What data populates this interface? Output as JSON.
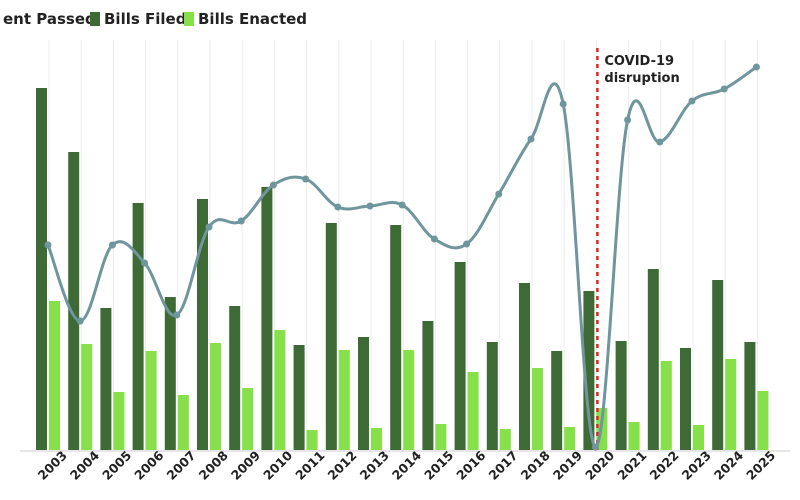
{
  "chart_data": {
    "type": "bar",
    "categories": [
      "2003",
      "2004",
      "2005",
      "2006",
      "2007",
      "2008",
      "2009",
      "2010",
      "2011",
      "2012",
      "2013",
      "2014",
      "2015",
      "2016",
      "2017",
      "2018",
      "2019",
      "2020",
      "2021",
      "2022",
      "2023",
      "2024",
      "2025"
    ],
    "series": [
      {
        "name": "Bills Filed",
        "kind": "bar",
        "color": "#3e6b35",
        "values": [
          362,
          298,
          142,
          247,
          153,
          251,
          144,
          263,
          105,
          227,
          113,
          225,
          129,
          188,
          108,
          167,
          99,
          159,
          109,
          181,
          102,
          170,
          108
        ]
      },
      {
        "name": "Bills Enacted",
        "kind": "bar",
        "color": "#86e04a",
        "values": [
          149,
          106,
          58,
          99,
          55,
          107,
          62,
          120,
          20,
          100,
          22,
          100,
          26,
          78,
          21,
          82,
          23,
          42,
          28,
          89,
          25,
          91,
          59
        ]
      },
      {
        "name": "ent Passed",
        "kind": "line",
        "color": "#6f959d",
        "values": [
          205,
          129,
          205,
          187,
          135,
          223,
          229,
          265,
          271,
          243,
          244,
          245,
          211,
          206,
          256,
          311,
          346,
          3,
          330,
          308,
          349,
          361,
          383
        ]
      }
    ],
    "ylim": [
      0,
      400
    ],
    "legend_position": "top-left",
    "annotation": {
      "category": "2020",
      "text_lines": [
        "COVID-19",
        "disruption"
      ],
      "line_color": "#e0261f"
    },
    "grid": "vertical"
  }
}
